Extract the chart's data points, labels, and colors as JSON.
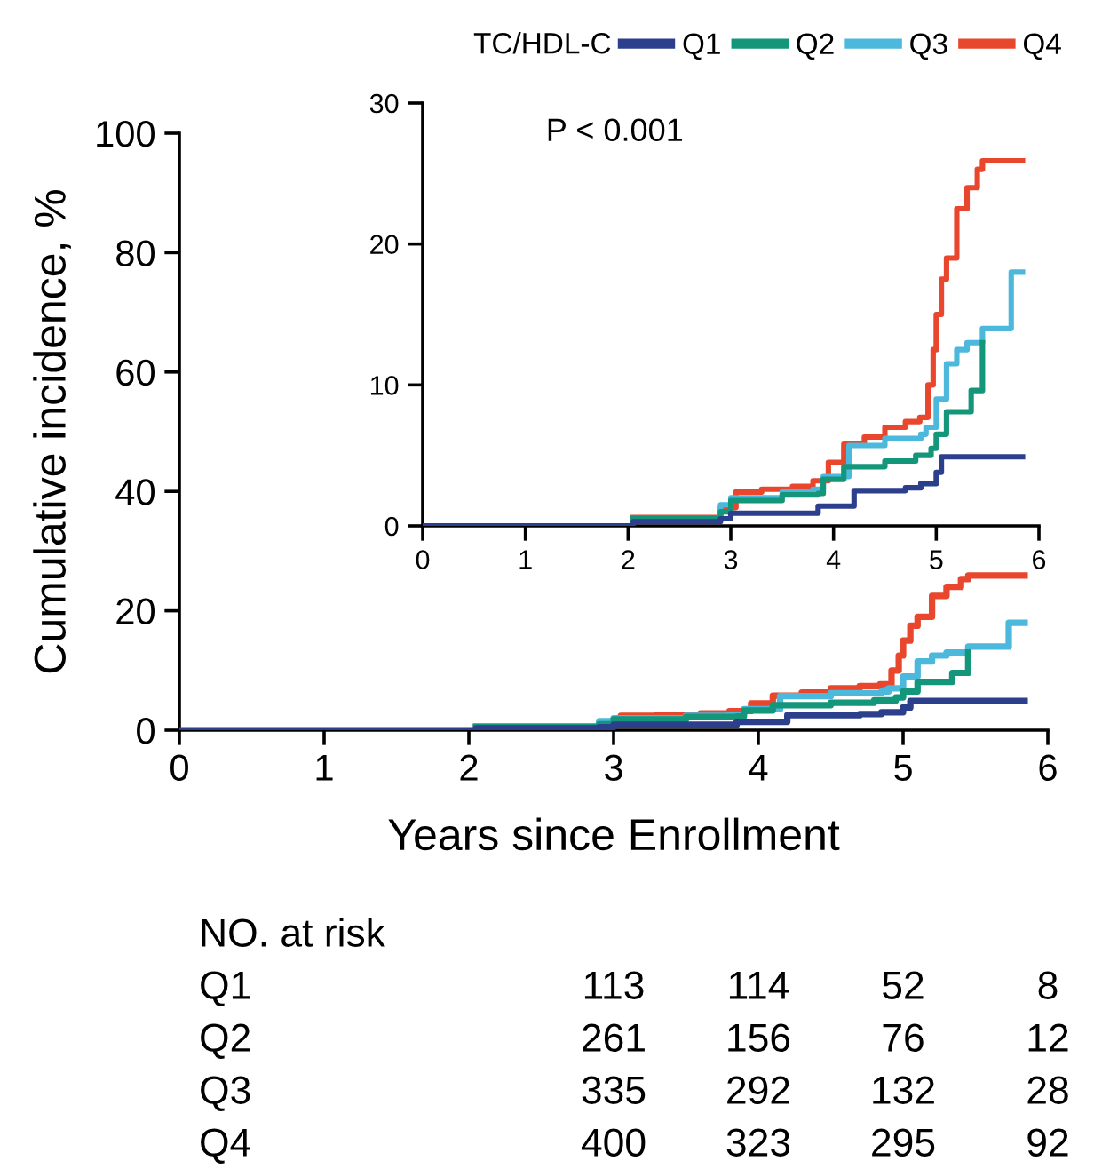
{
  "chart_data": [
    {
      "type": "step",
      "xlabel": "Years since Enrollment",
      "ylabel": "Cumulative incidence, %",
      "legend_title": "TC/HDL-C",
      "legend": "top right",
      "xlim": [
        0,
        6
      ],
      "ylim": [
        0,
        100
      ],
      "xticks": [
        0,
        1,
        2,
        3,
        4,
        5,
        6
      ],
      "yticks": [
        0,
        20,
        40,
        60,
        80,
        100
      ],
      "grid": false,
      "line_style": "solid",
      "series": [
        {
          "name": "Q1",
          "color": "#2b3f8c",
          "x": [
            0,
            2.0,
            2.05,
            2.9,
            3.0,
            3.85,
            4.2,
            4.7,
            4.85,
            5.0,
            5.05,
            5.84
          ],
          "values": [
            0,
            0,
            0.3,
            0.5,
            0.9,
            1.4,
            2.5,
            2.7,
            3.0,
            3.8,
            4.9,
            4.9
          ]
        },
        {
          "name": "Q2",
          "color": "#14967a",
          "x": [
            2.05,
            2.9,
            3.0,
            3.5,
            3.85,
            3.9,
            4.1,
            4.5,
            4.8,
            4.95,
            5.0,
            5.1,
            5.34,
            5.45,
            5.45
          ],
          "values": [
            0.5,
            1.0,
            1.8,
            2.2,
            2.3,
            3.3,
            4.2,
            4.6,
            5.0,
            5.5,
            6.5,
            8.1,
            9.6,
            13.0,
            13.0
          ]
        },
        {
          "name": "Q3",
          "color": "#4cb8dc",
          "x": [
            2.05,
            2.9,
            3.0,
            3.5,
            3.8,
            3.9,
            4.15,
            4.5,
            4.85,
            4.9,
            5.0,
            5.1,
            5.2,
            5.3,
            5.45,
            5.73,
            5.84
          ],
          "values": [
            0.5,
            1.5,
            2.0,
            2.4,
            2.6,
            3.5,
            5.7,
            6.2,
            6.5,
            7.0,
            9.0,
            11.5,
            12.5,
            13.0,
            14.0,
            18.0,
            18.0
          ]
        },
        {
          "name": "Q4",
          "color": "#e8472e",
          "x": [
            2.05,
            2.9,
            3.05,
            3.3,
            3.6,
            3.8,
            3.95,
            4.1,
            4.3,
            4.5,
            4.7,
            4.84,
            4.92,
            4.97,
            5.0,
            5.05,
            5.1,
            5.2,
            5.3,
            5.4,
            5.45,
            5.84
          ],
          "values": [
            0.6,
            1.3,
            2.4,
            2.6,
            2.8,
            3.2,
            4.5,
            5.8,
            6.3,
            7.0,
            7.4,
            7.7,
            10.0,
            12.5,
            15.0,
            17.5,
            19.0,
            22.5,
            24.0,
            25.3,
            25.9,
            25.9
          ]
        }
      ],
      "annotations": [
        "NO. at risk",
        "Q1",
        "113",
        "114",
        "52",
        "8",
        "Q2",
        "261",
        "156",
        "76",
        "12",
        "Q3",
        "335",
        "292",
        "132",
        "28",
        "Q4",
        "400",
        "323",
        "295",
        "92"
      ]
    },
    {
      "type": "step",
      "xlim": [
        0,
        6
      ],
      "ylim": [
        0,
        30
      ],
      "xticks": [
        0,
        1,
        2,
        3,
        4,
        5,
        6
      ],
      "yticks": [
        0,
        10,
        20,
        30
      ],
      "grid": false,
      "line_style": "solid",
      "series": [
        {
          "color": "#2b3f8c",
          "x": [
            0,
            2.0,
            2.05,
            2.9,
            3.0,
            3.85,
            4.2,
            4.7,
            4.85,
            5.0,
            5.05,
            5.84
          ],
          "values": [
            0,
            0,
            0.3,
            0.5,
            0.9,
            1.4,
            2.5,
            2.7,
            3.0,
            3.8,
            4.9,
            4.9
          ]
        },
        {
          "color": "#14967a",
          "x": [
            2.05,
            2.9,
            3.0,
            3.5,
            3.85,
            3.9,
            4.1,
            4.5,
            4.8,
            4.95,
            5.0,
            5.1,
            5.34,
            5.45,
            5.45
          ],
          "values": [
            0.5,
            1.0,
            1.8,
            2.2,
            2.3,
            3.3,
            4.2,
            4.6,
            5.0,
            5.5,
            6.5,
            8.1,
            9.6,
            13.0,
            13.0
          ]
        },
        {
          "color": "#4cb8dc",
          "x": [
            2.05,
            2.9,
            3.0,
            3.5,
            3.8,
            3.9,
            4.15,
            4.5,
            4.85,
            4.9,
            5.0,
            5.1,
            5.2,
            5.3,
            5.45,
            5.73,
            5.84
          ],
          "values": [
            0.5,
            1.5,
            2.0,
            2.4,
            2.6,
            3.5,
            5.7,
            6.2,
            6.5,
            7.0,
            9.0,
            11.5,
            12.5,
            13.0,
            14.0,
            18.0,
            18.0
          ]
        },
        {
          "color": "#e8472e",
          "x": [
            2.05,
            2.9,
            3.05,
            3.3,
            3.6,
            3.8,
            3.95,
            4.1,
            4.3,
            4.5,
            4.7,
            4.84,
            4.92,
            4.97,
            5.0,
            5.05,
            5.1,
            5.2,
            5.3,
            5.4,
            5.45,
            5.84
          ],
          "values": [
            0.6,
            1.3,
            2.4,
            2.6,
            2.8,
            3.2,
            4.5,
            5.8,
            6.3,
            7.0,
            7.4,
            7.7,
            10.0,
            12.5,
            15.0,
            17.5,
            19.0,
            22.5,
            24.0,
            25.3,
            25.9,
            25.9
          ]
        }
      ],
      "annotations": [
        "P < 0.001"
      ]
    }
  ]
}
